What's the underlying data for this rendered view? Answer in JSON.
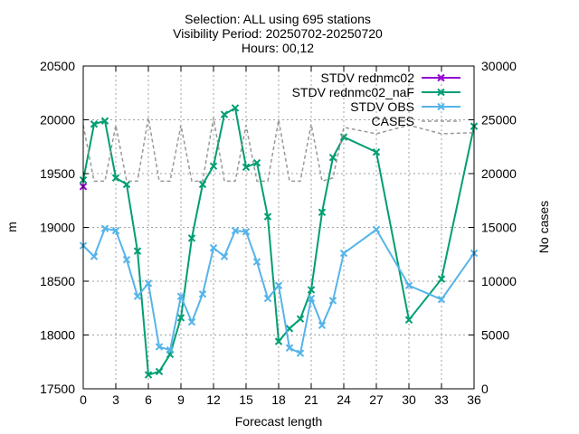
{
  "chart_data": {
    "type": "line",
    "title_lines": [
      "Selection: ALL using   695 stations",
      "Visibility   Period: 20250702-20250720",
      "Hours: 00,12"
    ],
    "xlabel": "Forecast length",
    "ylabel": "m",
    "y2label": "No cases",
    "xlim": [
      0,
      36
    ],
    "ylim": [
      17500,
      20500
    ],
    "y2lim": [
      0,
      30000
    ],
    "x_ticks": [
      0,
      3,
      6,
      9,
      12,
      15,
      18,
      21,
      24,
      27,
      30,
      33,
      36
    ],
    "y_ticks": [
      17500,
      18000,
      18500,
      19000,
      19500,
      20000,
      20500
    ],
    "y2_ticks": [
      0,
      5000,
      10000,
      15000,
      20000,
      25000,
      30000
    ],
    "grid": true,
    "legend_position": "top-right",
    "series": [
      {
        "name": "STDV rednmc02",
        "color": "#9400d3",
        "style": "solid",
        "marker": "x",
        "axis": "y",
        "x": [
          0
        ],
        "y": [
          19380
        ]
      },
      {
        "name": "STDV rednmc02_naF",
        "color": "#009e73",
        "style": "solid",
        "marker": "x",
        "axis": "y",
        "x": [
          0,
          1,
          2,
          3,
          4,
          5,
          6,
          7,
          8,
          9,
          10,
          11,
          12,
          13,
          14,
          15,
          16,
          17,
          18,
          19,
          20,
          21,
          22,
          23,
          24,
          27,
          30,
          33,
          36
        ],
        "y": [
          19440,
          19960,
          19990,
          19460,
          19400,
          18780,
          17630,
          17660,
          17820,
          18160,
          18900,
          19400,
          19570,
          20050,
          20110,
          19560,
          19600,
          19100,
          17940,
          18060,
          18150,
          18420,
          19140,
          19650,
          19840,
          19700,
          18140,
          18520,
          19940
        ]
      },
      {
        "name": "STDV OBS",
        "color": "#56b4e9",
        "style": "solid",
        "marker": "x",
        "axis": "y",
        "x": [
          0,
          1,
          2,
          3,
          4,
          5,
          6,
          7,
          8,
          9,
          10,
          11,
          12,
          13,
          14,
          15,
          16,
          17,
          18,
          19,
          20,
          21,
          22,
          23,
          24,
          27,
          30,
          33,
          36
        ],
        "y": [
          18830,
          18730,
          18990,
          18970,
          18700,
          18360,
          18480,
          17890,
          17860,
          18360,
          18120,
          18380,
          18810,
          18730,
          18970,
          18960,
          18680,
          18340,
          18460,
          17880,
          17830,
          18340,
          18090,
          18320,
          18760,
          18980,
          18460,
          18330,
          18760
        ]
      },
      {
        "name": "CASES",
        "color": "#999999",
        "style": "dashed",
        "marker": "none",
        "axis": "y2",
        "x": [
          0,
          1,
          2,
          3,
          4,
          5,
          6,
          7,
          8,
          9,
          10,
          11,
          12,
          13,
          14,
          15,
          16,
          17,
          18,
          19,
          20,
          21,
          22,
          23,
          24,
          27,
          30,
          33,
          36
        ],
        "y": [
          24500,
          19300,
          19300,
          24500,
          19300,
          19300,
          25200,
          19300,
          19300,
          24500,
          19300,
          19300,
          25200,
          19300,
          19300,
          24500,
          19300,
          19300,
          25000,
          19300,
          19300,
          24600,
          19300,
          19600,
          24300,
          23700,
          24500,
          23700,
          23800
        ]
      }
    ]
  }
}
